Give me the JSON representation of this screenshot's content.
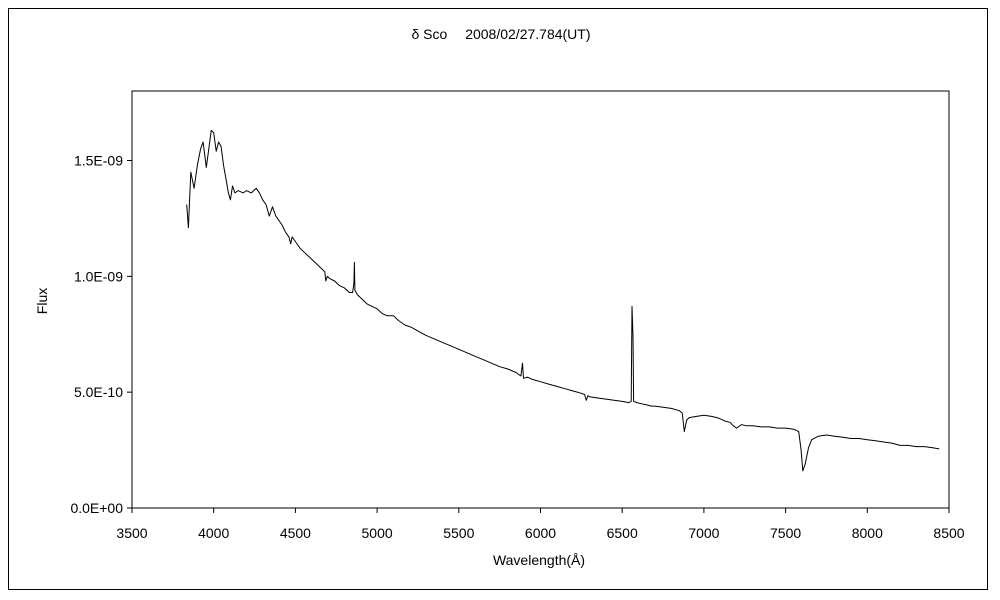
{
  "chart_data": {
    "type": "line",
    "title": "δ Sco　 2008/02/27.784(UT)",
    "xlabel": "Wavelength(Å)",
    "ylabel": "Flux",
    "xlim": [
      3500,
      8500
    ],
    "ylim": [
      0,
      1.8e-09
    ],
    "x_ticks": [
      3500,
      4000,
      4500,
      5000,
      5500,
      6000,
      6500,
      7000,
      7500,
      8000,
      8500
    ],
    "x_tick_labels": [
      "3500",
      "4000",
      "4500",
      "5000",
      "5500",
      "6000",
      "6500",
      "7000",
      "7500",
      "8000",
      "8500"
    ],
    "y_ticks": [
      0,
      5e-10,
      1e-09,
      1.5e-09
    ],
    "y_tick_labels": [
      "0.0E+00",
      "5.0E-10",
      "1.0E-09",
      "1.5E-09"
    ],
    "grid": false,
    "series": [
      {
        "color": "#000000",
        "points": [
          [
            3835,
            1.31e-09
          ],
          [
            3845,
            1.21e-09
          ],
          [
            3860,
            1.45e-09
          ],
          [
            3880,
            1.38e-09
          ],
          [
            3900,
            1.48e-09
          ],
          [
            3920,
            1.55e-09
          ],
          [
            3935,
            1.58e-09
          ],
          [
            3955,
            1.47e-09
          ],
          [
            3970,
            1.55e-09
          ],
          [
            3985,
            1.63e-09
          ],
          [
            4000,
            1.62e-09
          ],
          [
            4015,
            1.54e-09
          ],
          [
            4030,
            1.58e-09
          ],
          [
            4045,
            1.56e-09
          ],
          [
            4060,
            1.48e-09
          ],
          [
            4075,
            1.42e-09
          ],
          [
            4090,
            1.36e-09
          ],
          [
            4102,
            1.33e-09
          ],
          [
            4115,
            1.39e-09
          ],
          [
            4130,
            1.36e-09
          ],
          [
            4150,
            1.37e-09
          ],
          [
            4180,
            1.36e-09
          ],
          [
            4200,
            1.37e-09
          ],
          [
            4230,
            1.36e-09
          ],
          [
            4260,
            1.38e-09
          ],
          [
            4280,
            1.36e-09
          ],
          [
            4300,
            1.33e-09
          ],
          [
            4320,
            1.31e-09
          ],
          [
            4340,
            1.26e-09
          ],
          [
            4360,
            1.3e-09
          ],
          [
            4380,
            1.26e-09
          ],
          [
            4400,
            1.24e-09
          ],
          [
            4420,
            1.22e-09
          ],
          [
            4440,
            1.19e-09
          ],
          [
            4460,
            1.17e-09
          ],
          [
            4471,
            1.14e-09
          ],
          [
            4480,
            1.17e-09
          ],
          [
            4500,
            1.15e-09
          ],
          [
            4530,
            1.12e-09
          ],
          [
            4560,
            1.1e-09
          ],
          [
            4590,
            1.08e-09
          ],
          [
            4620,
            1.06e-09
          ],
          [
            4650,
            1.04e-09
          ],
          [
            4680,
            1.02e-09
          ],
          [
            4686,
            9.8e-10
          ],
          [
            4695,
            1e-09
          ],
          [
            4710,
            9.9e-10
          ],
          [
            4740,
            9.8e-10
          ],
          [
            4770,
            9.6e-10
          ],
          [
            4800,
            9.5e-10
          ],
          [
            4830,
            9.3e-10
          ],
          [
            4850,
            9.3e-10
          ],
          [
            4858,
            9.7e-10
          ],
          [
            4861,
            1.06e-09
          ],
          [
            4864,
            9.4e-10
          ],
          [
            4880,
            9.2e-10
          ],
          [
            4910,
            9e-10
          ],
          [
            4940,
            8.8e-10
          ],
          [
            4970,
            8.7e-10
          ],
          [
            5000,
            8.6e-10
          ],
          [
            5030,
            8.4e-10
          ],
          [
            5060,
            8.3e-10
          ],
          [
            5100,
            8.3e-10
          ],
          [
            5130,
            8.1e-10
          ],
          [
            5170,
            7.9e-10
          ],
          [
            5210,
            7.8e-10
          ],
          [
            5260,
            7.6e-10
          ],
          [
            5300,
            7.45e-10
          ],
          [
            5350,
            7.3e-10
          ],
          [
            5400,
            7.15e-10
          ],
          [
            5450,
            7e-10
          ],
          [
            5500,
            6.85e-10
          ],
          [
            5550,
            6.7e-10
          ],
          [
            5600,
            6.55e-10
          ],
          [
            5650,
            6.4e-10
          ],
          [
            5700,
            6.25e-10
          ],
          [
            5750,
            6.1e-10
          ],
          [
            5800,
            6e-10
          ],
          [
            5850,
            5.85e-10
          ],
          [
            5880,
            5.7e-10
          ],
          [
            5890,
            6.25e-10
          ],
          [
            5896,
            5.6e-10
          ],
          [
            5920,
            5.65e-10
          ],
          [
            5950,
            5.55e-10
          ],
          [
            6000,
            5.45e-10
          ],
          [
            6050,
            5.35e-10
          ],
          [
            6100,
            5.25e-10
          ],
          [
            6150,
            5.15e-10
          ],
          [
            6200,
            5.05e-10
          ],
          [
            6250,
            4.95e-10
          ],
          [
            6270,
            4.9e-10
          ],
          [
            6280,
            4.65e-10
          ],
          [
            6290,
            4.85e-10
          ],
          [
            6300,
            4.8e-10
          ],
          [
            6350,
            4.75e-10
          ],
          [
            6400,
            4.7e-10
          ],
          [
            6450,
            4.65e-10
          ],
          [
            6500,
            4.6e-10
          ],
          [
            6540,
            4.55e-10
          ],
          [
            6555,
            4.6e-10
          ],
          [
            6560,
            8.7e-10
          ],
          [
            6566,
            7.4e-10
          ],
          [
            6570,
            4.6e-10
          ],
          [
            6590,
            4.55e-10
          ],
          [
            6620,
            4.5e-10
          ],
          [
            6650,
            4.45e-10
          ],
          [
            6678,
            4.4e-10
          ],
          [
            6700,
            4.4e-10
          ],
          [
            6750,
            4.35e-10
          ],
          [
            6800,
            4.3e-10
          ],
          [
            6850,
            4.2e-10
          ],
          [
            6867,
            4.1e-10
          ],
          [
            6880,
            3.3e-10
          ],
          [
            6895,
            3.8e-10
          ],
          [
            6910,
            3.9e-10
          ],
          [
            6950,
            3.95e-10
          ],
          [
            7000,
            4e-10
          ],
          [
            7050,
            3.95e-10
          ],
          [
            7080,
            3.9e-10
          ],
          [
            7100,
            3.85e-10
          ],
          [
            7130,
            3.75e-10
          ],
          [
            7160,
            3.7e-10
          ],
          [
            7180,
            3.55e-10
          ],
          [
            7200,
            3.45e-10
          ],
          [
            7230,
            3.6e-10
          ],
          [
            7260,
            3.55e-10
          ],
          [
            7300,
            3.55e-10
          ],
          [
            7350,
            3.5e-10
          ],
          [
            7400,
            3.5e-10
          ],
          [
            7450,
            3.45e-10
          ],
          [
            7500,
            3.45e-10
          ],
          [
            7550,
            3.4e-10
          ],
          [
            7580,
            3.3e-10
          ],
          [
            7595,
            2.5e-10
          ],
          [
            7605,
            1.6e-10
          ],
          [
            7620,
            1.9e-10
          ],
          [
            7640,
            2.6e-10
          ],
          [
            7660,
            2.95e-10
          ],
          [
            7700,
            3.1e-10
          ],
          [
            7750,
            3.15e-10
          ],
          [
            7800,
            3.1e-10
          ],
          [
            7850,
            3.05e-10
          ],
          [
            7900,
            3e-10
          ],
          [
            7950,
            3e-10
          ],
          [
            8000,
            2.95e-10
          ],
          [
            8050,
            2.9e-10
          ],
          [
            8100,
            2.85e-10
          ],
          [
            8150,
            2.8e-10
          ],
          [
            8200,
            2.7e-10
          ],
          [
            8250,
            2.7e-10
          ],
          [
            8300,
            2.65e-10
          ],
          [
            8350,
            2.65e-10
          ],
          [
            8400,
            2.6e-10
          ],
          [
            8440,
            2.55e-10
          ]
        ]
      }
    ]
  }
}
